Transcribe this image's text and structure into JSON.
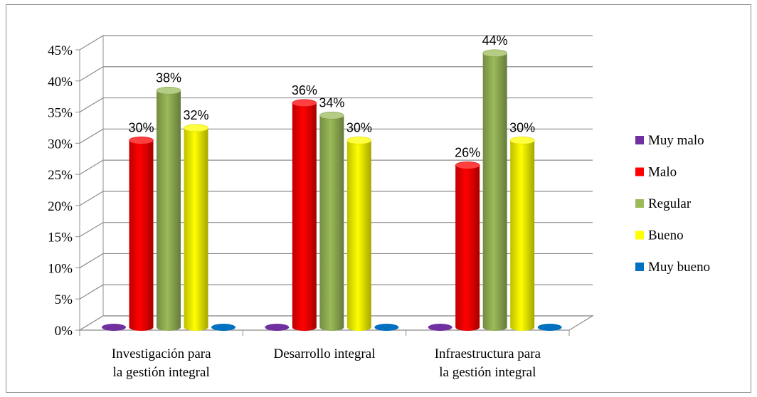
{
  "chart_data": {
    "type": "bar",
    "categories": [
      [
        "Investigación para",
        "la gestión integral"
      ],
      [
        "Desarrollo integral"
      ],
      [
        "Infraestructura para",
        "la gestión integral"
      ]
    ],
    "series": [
      {
        "name": "Muy malo",
        "color": "#7030a0",
        "values": [
          0,
          0,
          0
        ]
      },
      {
        "name": "Malo",
        "color": "#ff0000",
        "values": [
          30,
          36,
          26
        ]
      },
      {
        "name": "Regular",
        "color": "#9bbb59",
        "values": [
          38,
          34,
          44
        ]
      },
      {
        "name": "Bueno",
        "color": "#ffff00",
        "values": [
          32,
          30,
          30
        ]
      },
      {
        "name": "Muy bueno",
        "color": "#0070c0",
        "values": [
          0,
          0,
          0
        ]
      }
    ],
    "data_labels": [
      [
        null,
        "30%",
        "38%",
        "32%",
        null
      ],
      [
        null,
        "36%",
        "34%",
        "30%",
        null
      ],
      [
        null,
        "26%",
        "44%",
        "30%",
        null
      ]
    ],
    "yticks": [
      "0%",
      "5%",
      "10%",
      "15%",
      "20%",
      "25%",
      "30%",
      "35%",
      "40%",
      "45%"
    ],
    "ylim": [
      0,
      45
    ],
    "grid": true,
    "legend": "right",
    "style": "3d-cylinder"
  }
}
